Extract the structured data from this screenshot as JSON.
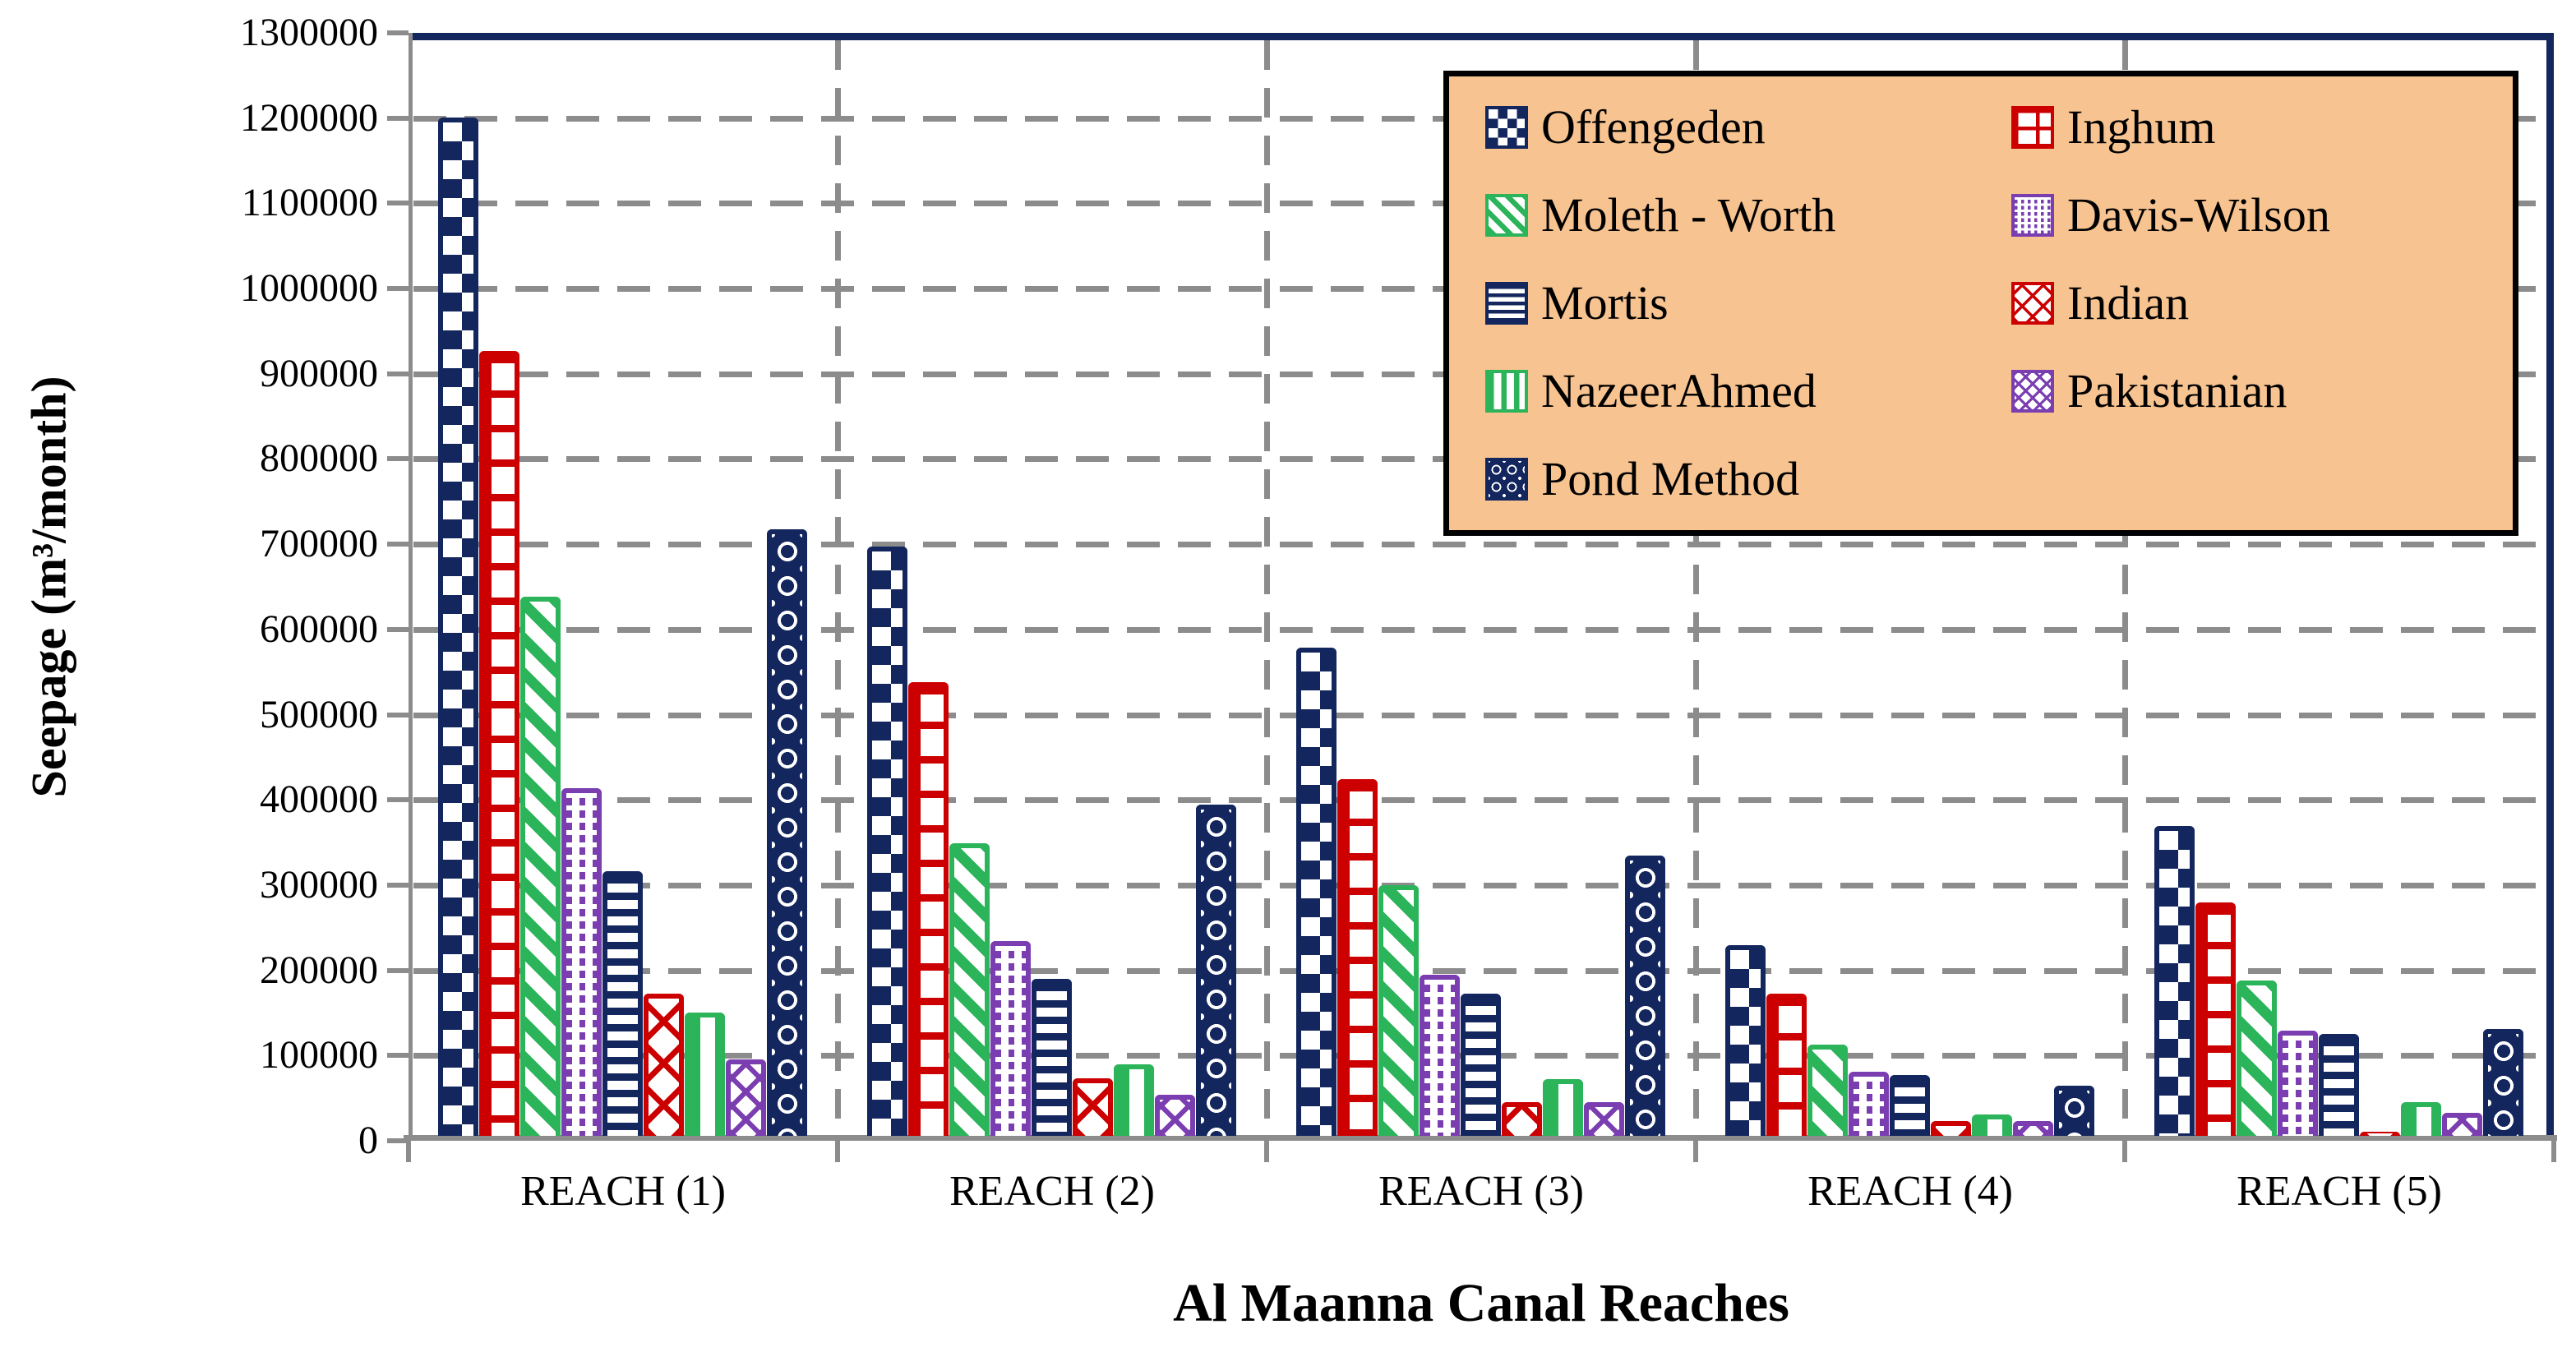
{
  "chart_data": {
    "type": "bar",
    "title": "",
    "xlabel": "Al Maanna Canal Reaches",
    "ylabel": "Seepage (m³/month)",
    "categories": [
      "REACH (1)",
      "REACH (2)",
      "REACH (3)",
      "REACH (4)",
      "REACH (5)"
    ],
    "ylim": [
      0,
      1300000
    ],
    "ytick_step": 100000,
    "ytick_labels": [
      "0",
      "100000",
      "200000",
      "300000",
      "400000",
      "500000",
      "600000",
      "700000",
      "800000",
      "900000",
      "1000000",
      "1100000",
      "1200000",
      "1300000"
    ],
    "grid": {
      "horizontal": "dashed",
      "vertical_category_separators": "dashed",
      "grid_color": "#8C8C8C"
    },
    "legend": {
      "position": "top-right",
      "background": "#F7C390",
      "border_color": "#000000",
      "columns": 2
    },
    "colors": {
      "plot_border_top_right": "#13265E",
      "axis_gray": "#8C8C8C",
      "navy": "#13265E",
      "red": "#CC0000",
      "green": "#2BB45A",
      "purple": "#7A3EB1"
    },
    "series": [
      {
        "name": "Offengeden",
        "color": "#13265E",
        "pattern": "checker",
        "values": [
          1200000,
          695000,
          575000,
          225000,
          365000
        ]
      },
      {
        "name": "Inghum",
        "color": "#CC0000",
        "pattern": "brick",
        "values": [
          925000,
          535000,
          420000,
          168000,
          275000
        ]
      },
      {
        "name": "Moleth - Worth",
        "color": "#2BB45A",
        "pattern": "diagonal-stripes",
        "values": [
          635000,
          345000,
          295000,
          108000,
          183000
        ]
      },
      {
        "name": "Davis-Wilson",
        "color": "#7A3EB1",
        "pattern": "dotted-grid",
        "values": [
          410000,
          230000,
          190000,
          76000,
          124000
        ]
      },
      {
        "name": "Mortis",
        "color": "#13265E",
        "pattern": "horizontal-stripes",
        "values": [
          312000,
          185000,
          168000,
          72000,
          120000
        ]
      },
      {
        "name": "Indian",
        "color": "#CC0000",
        "pattern": "diagonal-crosshatch",
        "values": [
          168000,
          68000,
          40000,
          17000,
          5000
        ]
      },
      {
        "name": "NazeerAhmed",
        "color": "#2BB45A",
        "pattern": "vertical-stripes",
        "values": [
          145000,
          84000,
          67000,
          25000,
          40000
        ]
      },
      {
        "name": "Pakistanian",
        "color": "#7A3EB1",
        "pattern": "diagonal-crosshatch-small",
        "values": [
          90000,
          48000,
          40000,
          17000,
          27000
        ]
      },
      {
        "name": "Pond Method",
        "color": "#13265E",
        "pattern": "sphere-grid",
        "values": [
          715000,
          390000,
          330000,
          59000,
          126000
        ]
      }
    ]
  }
}
